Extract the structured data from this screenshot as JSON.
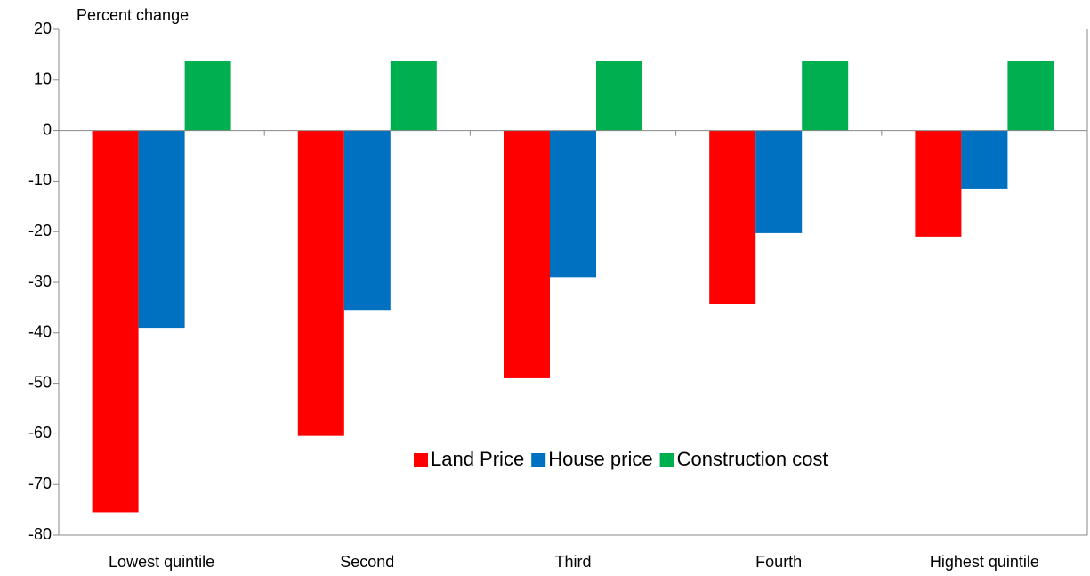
{
  "chart_data": {
    "type": "bar",
    "y_label": "Percent change",
    "categories": [
      "Lowest quintile",
      "Second",
      "Third",
      "Fourth",
      "Highest quintile"
    ],
    "series": [
      {
        "name": "Land Price",
        "color": "#ff0000",
        "values": [
          -75.5,
          -60.4,
          -49,
          -34.3,
          -21
        ]
      },
      {
        "name": "House price",
        "color": "#0070c0",
        "values": [
          -39,
          -35.5,
          -29,
          -20.3,
          -11.5
        ]
      },
      {
        "name": "Construction cost",
        "color": "#00b050",
        "values": [
          13.7,
          13.7,
          13.7,
          13.7,
          13.7
        ]
      }
    ],
    "ylim": [
      -80,
      20
    ],
    "yticks": [
      -80,
      -70,
      -60,
      -50,
      -40,
      -30,
      -20,
      -10,
      0,
      10,
      20
    ],
    "grid": false,
    "legend": "inside"
  }
}
